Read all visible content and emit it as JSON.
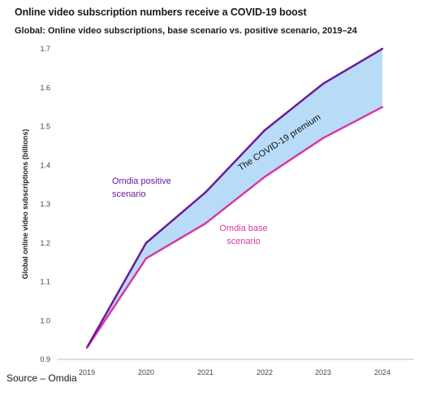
{
  "chart_data": {
    "type": "line",
    "title": "Online video subscription numbers receive a COVID-19 boost",
    "subtitle": "Global: Online video subscriptions, base scenario vs. positive scenario, 2019–24",
    "ylabel": "Global online video subscriptions (billions)",
    "xlabel": "",
    "categories": [
      "2019",
      "2020",
      "2021",
      "2022",
      "2023",
      "2024"
    ],
    "ylim": [
      0.9,
      1.7
    ],
    "yticks": [
      "0.9",
      "1.0",
      "1.1",
      "1.2",
      "1.3",
      "1.4",
      "1.5",
      "1.6",
      "1.7"
    ],
    "grid": false,
    "series": [
      {
        "name": "Omdia positive scenario",
        "values": [
          0.93,
          1.2,
          1.33,
          1.49,
          1.61,
          1.7
        ],
        "color": "#6a1b9a"
      },
      {
        "name": "Omdia base scenario",
        "values": [
          0.93,
          1.16,
          1.25,
          1.37,
          1.47,
          1.55
        ],
        "color": "#d63aa0"
      }
    ],
    "annotations": {
      "positive": "Omdia positive scenario",
      "base": "Omdia base scenario",
      "premium": "The COVID-19 premium"
    },
    "fill_color": "#b8dcf8"
  },
  "source": "Source – Omdia"
}
